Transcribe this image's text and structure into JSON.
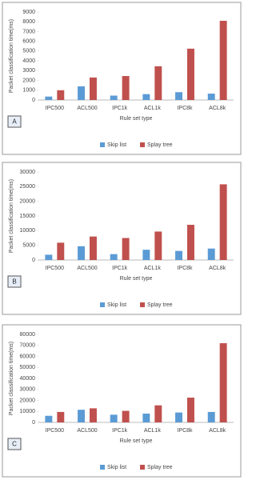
{
  "chart_data": [
    {
      "type": "bar",
      "label": "A",
      "x_label": "Rule set type",
      "y_label": "Packet classification time(ms)",
      "categories": [
        "IPC500",
        "ACL500",
        "IPC1k",
        "ACL1k",
        "IPC8k",
        "ACL8k"
      ],
      "series": [
        {
          "name": "Skip list",
          "color": "#5b9bd5",
          "values": [
            350,
            1400,
            450,
            600,
            800,
            650
          ]
        },
        {
          "name": "Splay tree",
          "color": "#c0504d",
          "values": [
            1000,
            2300,
            2450,
            3450,
            5250,
            8100
          ]
        }
      ],
      "ylim": [
        0,
        9000
      ],
      "yticks": [
        0,
        1000,
        2000,
        3000,
        4000,
        5000,
        6000,
        7000,
        8000,
        9000
      ],
      "grid": false,
      "legend": "bottom"
    },
    {
      "type": "bar",
      "label": "B",
      "x_label": "Rule set type",
      "y_label": "Packet classification time(ms)",
      "categories": [
        "IPC500",
        "ACL500",
        "IPC1k",
        "ACL1k",
        "IPC8k",
        "ACL8k"
      ],
      "series": [
        {
          "name": "Skip list",
          "color": "#5b9bd5",
          "values": [
            1800,
            4700,
            2000,
            3500,
            3100,
            3900
          ]
        },
        {
          "name": "Splay tree",
          "color": "#c0504d",
          "values": [
            5900,
            8000,
            7500,
            9700,
            12000,
            25800
          ]
        }
      ],
      "ylim": [
        0,
        30000
      ],
      "yticks": [
        0,
        5000,
        10000,
        15000,
        20000,
        25000,
        30000
      ],
      "grid": false,
      "legend": "bottom"
    },
    {
      "type": "bar",
      "label": "C",
      "x_label": "Rule set type",
      "y_label": "Packet classification time(ms)",
      "categories": [
        "IPC500",
        "ACL500",
        "IPC1k",
        "ACL1k",
        "IPC8k",
        "ACL8k"
      ],
      "series": [
        {
          "name": "Skip list",
          "color": "#5b9bd5",
          "values": [
            6000,
            11500,
            7000,
            8000,
            9000,
            9500
          ]
        },
        {
          "name": "Splay tree",
          "color": "#c0504d",
          "values": [
            9500,
            12800,
            10500,
            15500,
            22500,
            72000
          ]
        }
      ],
      "ylim": [
        0,
        80000
      ],
      "yticks": [
        0,
        10000,
        20000,
        30000,
        40000,
        50000,
        60000,
        70000,
        80000
      ],
      "grid": false,
      "legend": "bottom"
    }
  ]
}
